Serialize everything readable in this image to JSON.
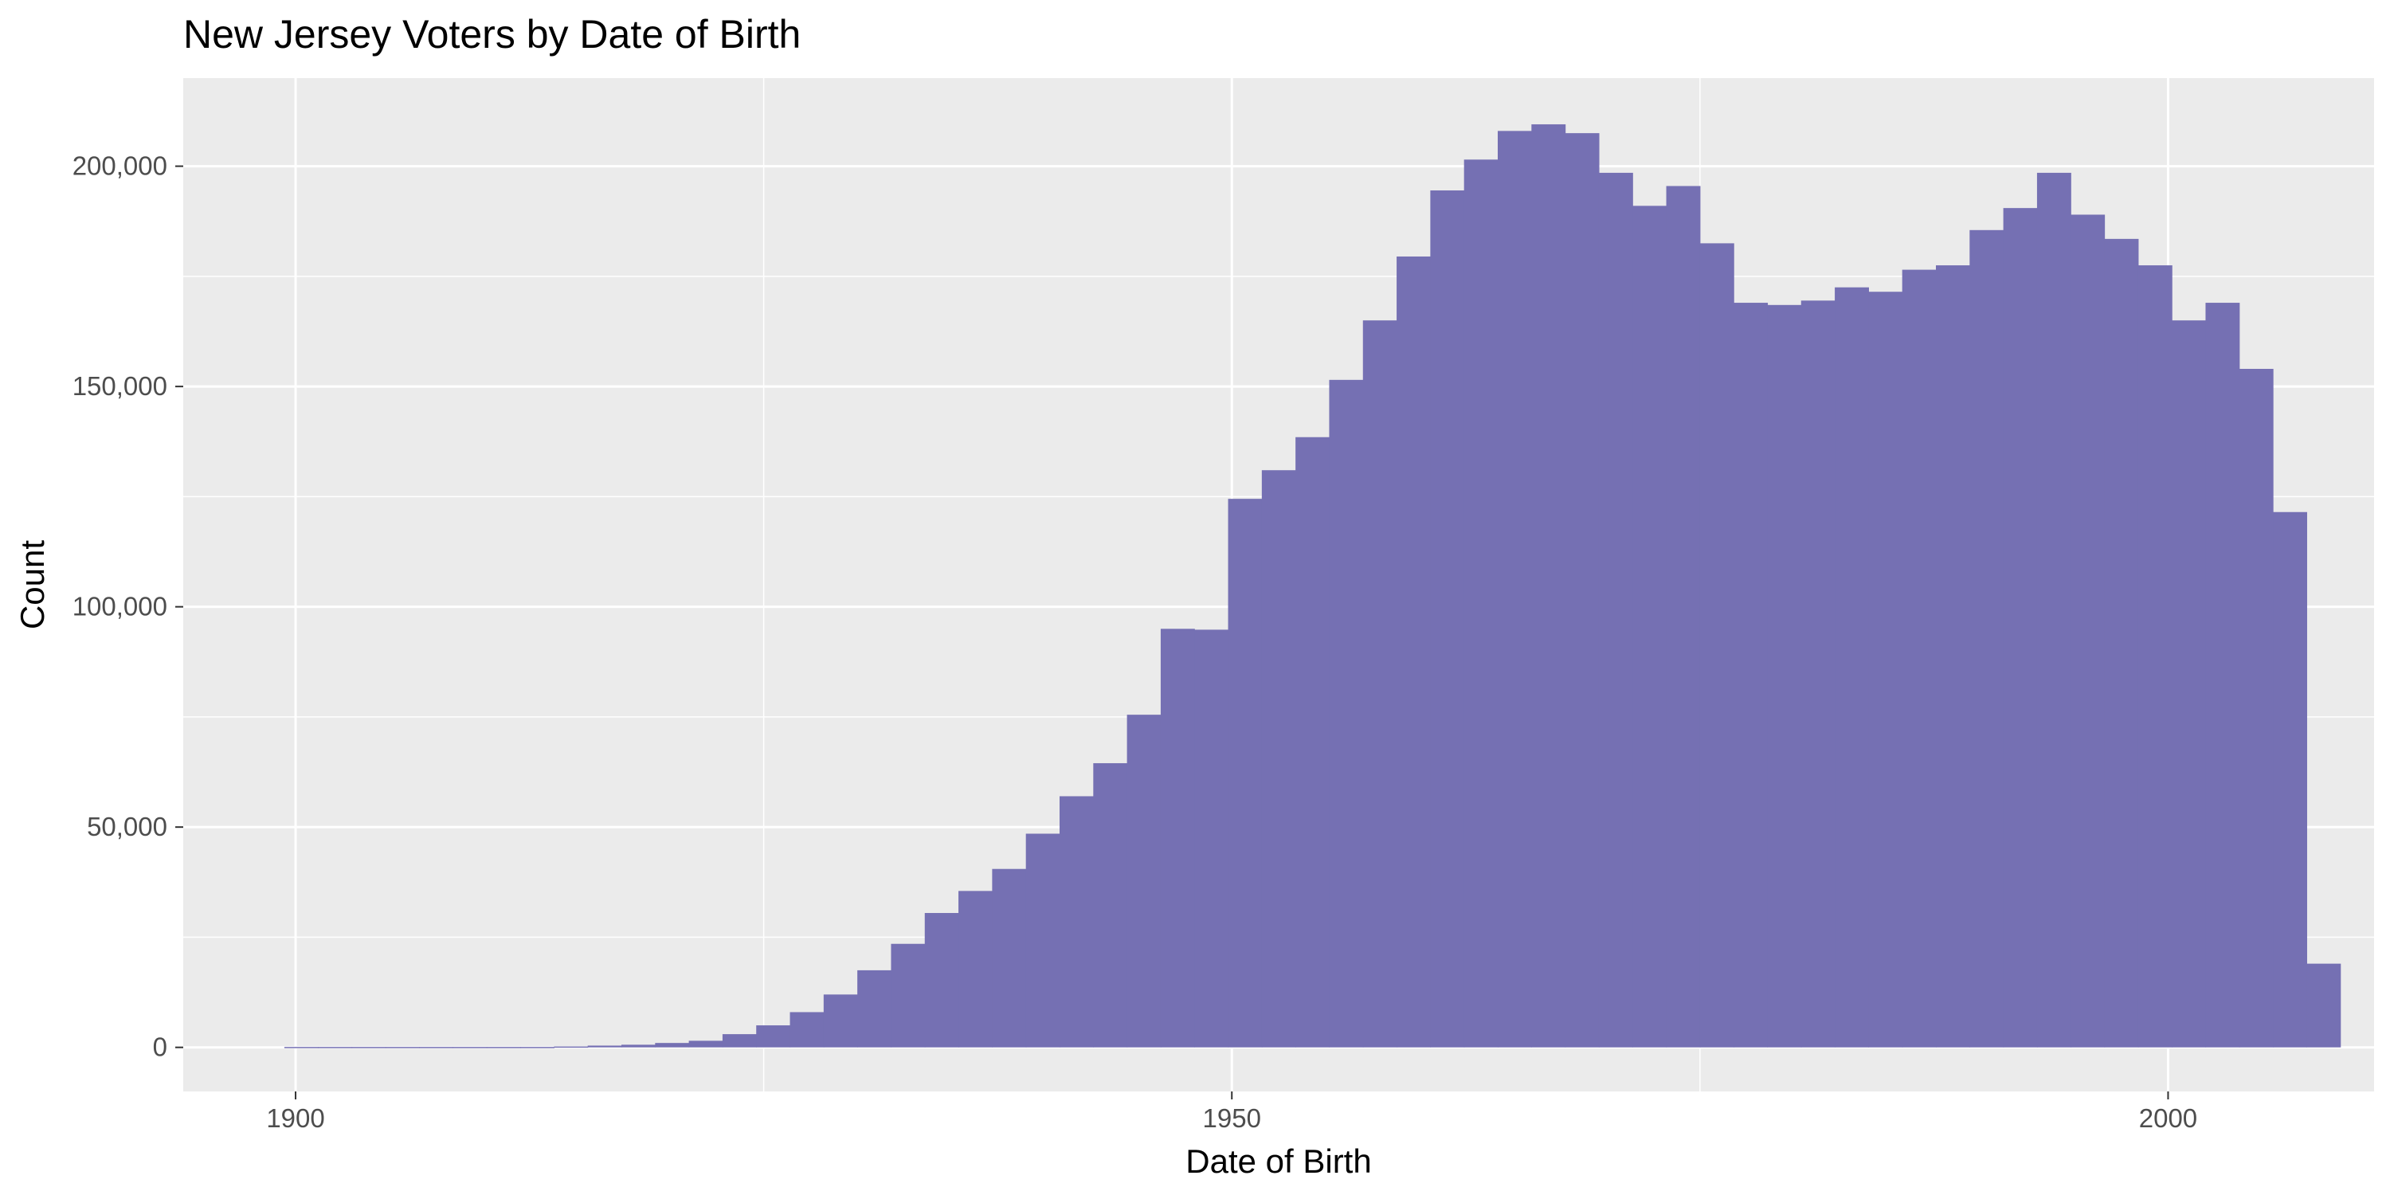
{
  "chart_data": {
    "type": "bar",
    "title": "New Jersey Voters by Date of Birth",
    "xlabel": "Date of Birth",
    "ylabel": "Count",
    "bar_color": "#7570b3",
    "panel_color": "#ebebeb",
    "xlim": [
      1894,
      2011
    ],
    "ylim": [
      -10000,
      220000
    ],
    "x_ticks": [
      {
        "value": 1900,
        "label": "1900"
      },
      {
        "value": 1950,
        "label": "1950"
      },
      {
        "value": 2000,
        "label": "2000"
      }
    ],
    "x_minor_ticks": [
      1925,
      1975
    ],
    "y_ticks": [
      {
        "value": 0,
        "label": "0"
      },
      {
        "value": 50000,
        "label": "50,000"
      },
      {
        "value": 100000,
        "label": "100,000"
      },
      {
        "value": 150000,
        "label": "150,000"
      },
      {
        "value": 200000,
        "label": "200,000"
      }
    ],
    "y_minor_ticks": [
      25000,
      75000,
      125000,
      175000
    ],
    "grid": true,
    "bin_start": 1899.4,
    "bin_width": 1.8,
    "values": [
      100,
      100,
      100,
      100,
      100,
      100,
      100,
      100,
      200,
      400,
      600,
      1000,
      1500,
      3000,
      5000,
      8000,
      12000,
      17500,
      23500,
      30500,
      35500,
      40500,
      48500,
      57000,
      64500,
      75500,
      95000,
      94800,
      124500,
      131000,
      138500,
      151500,
      165000,
      179500,
      194500,
      201500,
      208000,
      209500,
      207500,
      198500,
      191000,
      195500,
      182500,
      169000,
      168500,
      169500,
      172500,
      171500,
      176500,
      177500,
      185500,
      190500,
      198500,
      189000,
      183500,
      177500,
      165000,
      169000,
      154000,
      121500,
      19000
    ]
  }
}
